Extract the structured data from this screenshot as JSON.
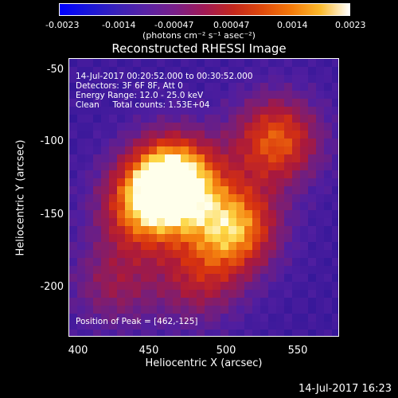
{
  "colorbar": {
    "ticks": [
      "-0.0023",
      "-0.0014",
      "-0.00047",
      "0.00047",
      "0.0014",
      "0.0023"
    ],
    "unit_label": "(photons cm⁻² s⁻¹ asec⁻²)"
  },
  "chart_data": {
    "type": "heatmap",
    "title": "Reconstructed RHESSI Image",
    "xlabel": "Heliocentric X (arcsec)",
    "ylabel": "Heliocentric Y (arcsec)",
    "xlim": [
      388,
      580
    ],
    "ylim": [
      -235,
      -40
    ],
    "xticks": [
      400,
      450,
      500,
      550
    ],
    "yticks": [
      -50,
      -100,
      -150,
      -200
    ],
    "color_range": [
      -0.0023,
      0.0023
    ],
    "peak_position": [
      462,
      -125
    ],
    "sources": [
      {
        "x": 462,
        "y": -125,
        "peak": 1.0
      },
      {
        "x": 505,
        "y": -158,
        "peak": 0.72
      },
      {
        "x": 535,
        "y": -97,
        "peak": 0.6
      },
      {
        "x": 440,
        "y": -145,
        "peak": 0.55
      },
      {
        "x": 480,
        "y": -195,
        "peak": 0.35
      },
      {
        "x": 420,
        "y": -198,
        "peak": 0.3
      }
    ]
  },
  "annotation": {
    "time_range": "14-Jul-2017 00:20:52.000 to 00:30:52.000",
    "detectors": "Detectors: 3F 6F 8F, Att 0",
    "energy": "Energy Range: 12.0 - 25.0 keV",
    "clean": "Clean     Total counts: 1.53E+04",
    "peak": "Position of Peak = [462,-125]"
  },
  "timestamp": "14-Jul-2017 16:23"
}
